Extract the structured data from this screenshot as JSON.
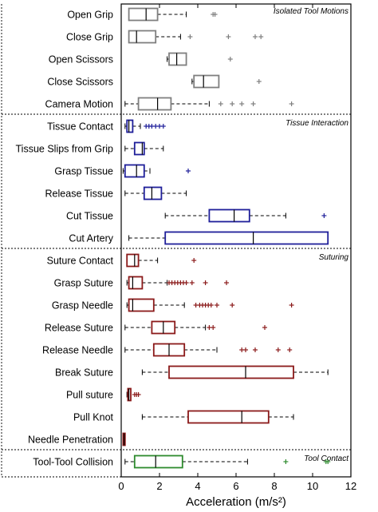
{
  "chart_data": {
    "type": "box",
    "xlabel": "Acceleration (m/s²)",
    "xlim": [
      0,
      12
    ],
    "x_ticks": [
      0,
      2,
      4,
      6,
      8,
      10,
      12
    ],
    "groups": [
      {
        "label": "Isolated Tool Motions",
        "color": "#7f7f7f",
        "items": [
          {
            "label": "Open Grip",
            "whisker_low": 0.4,
            "q1": 0.4,
            "median": 1.3,
            "q3": 1.9,
            "whisker_high": 3.4,
            "outliers": [
              4.8,
              4.9
            ]
          },
          {
            "label": "Close Grip",
            "whisker_low": 0.4,
            "q1": 0.4,
            "median": 0.8,
            "q3": 1.8,
            "whisker_high": 3.1,
            "outliers": [
              3.6,
              5.6,
              7.0,
              7.3
            ]
          },
          {
            "label": "Open Scissors",
            "whisker_low": 2.4,
            "q1": 2.5,
            "median": 2.9,
            "q3": 3.4,
            "whisker_high": 3.4,
            "outliers": [
              5.7
            ]
          },
          {
            "label": "Close Scissors",
            "whisker_low": 3.7,
            "q1": 3.8,
            "median": 4.3,
            "q3": 5.1,
            "whisker_high": 5.1,
            "outliers": [
              7.2
            ]
          },
          {
            "label": "Camera Motion",
            "whisker_low": 0.2,
            "q1": 0.9,
            "median": 1.9,
            "q3": 2.6,
            "whisker_high": 4.6,
            "outliers": [
              5.2,
              5.8,
              6.3,
              6.9,
              8.9
            ]
          }
        ]
      },
      {
        "label": "Tissue Interaction",
        "color": "#1f1f9a",
        "items": [
          {
            "label": "Tissue Contact",
            "whisker_low": 0.2,
            "q1": 0.3,
            "median": 0.4,
            "q3": 0.6,
            "whisker_high": 1.0,
            "outliers": [
              1.3,
              1.45,
              1.6,
              1.8,
              2.0,
              2.2
            ]
          },
          {
            "label": "Tissue Slips from Grip",
            "whisker_low": 0.2,
            "q1": 0.7,
            "median": 1.1,
            "q3": 1.2,
            "whisker_high": 2.2,
            "outliers": []
          },
          {
            "label": "Grasp Tissue",
            "whisker_low": 0.1,
            "q1": 0.2,
            "median": 0.8,
            "q3": 1.2,
            "whisker_high": 1.5,
            "outliers": [
              3.5
            ]
          },
          {
            "label": "Release Tissue",
            "whisker_low": 0.2,
            "q1": 1.2,
            "median": 1.6,
            "q3": 2.1,
            "whisker_high": 3.4,
            "outliers": []
          },
          {
            "label": "Cut Tissue",
            "whisker_low": 2.3,
            "q1": 4.6,
            "median": 5.9,
            "q3": 6.7,
            "whisker_high": 8.6,
            "outliers": [
              10.6
            ]
          },
          {
            "label": "Cut Artery",
            "whisker_low": 0.4,
            "q1": 2.3,
            "median": 6.9,
            "q3": 10.8,
            "whisker_high": 10.8,
            "outliers": []
          }
        ]
      },
      {
        "label": "Suturing",
        "color": "#8b1a1a",
        "items": [
          {
            "label": "Suture Contact",
            "whisker_low": 0.3,
            "q1": 0.3,
            "median": 0.7,
            "q3": 0.9,
            "whisker_high": 1.9,
            "outliers": [
              3.8
            ]
          },
          {
            "label": "Grasp Suture",
            "whisker_low": 0.3,
            "q1": 0.4,
            "median": 0.6,
            "q3": 1.1,
            "whisker_high": 2.4,
            "outliers": [
              2.5,
              2.65,
              2.8,
              2.95,
              3.1,
              3.25,
              3.4,
              3.7,
              4.4,
              5.5
            ]
          },
          {
            "label": "Grasp Needle",
            "whisker_low": 0.3,
            "q1": 0.4,
            "median": 0.6,
            "q3": 1.7,
            "whisker_high": 3.3,
            "outliers": [
              3.9,
              4.1,
              4.25,
              4.4,
              4.55,
              4.7,
              5.0,
              5.8,
              8.9
            ]
          },
          {
            "label": "Release Suture",
            "whisker_low": 0.2,
            "q1": 1.6,
            "median": 2.2,
            "q3": 2.8,
            "whisker_high": 4.4,
            "outliers": [
              4.6,
              4.8,
              7.5
            ]
          },
          {
            "label": "Release Needle",
            "whisker_low": 0.2,
            "q1": 1.7,
            "median": 2.5,
            "q3": 3.3,
            "whisker_high": 5.0,
            "outliers": [
              6.3,
              6.5,
              7.0,
              8.2,
              8.8
            ]
          },
          {
            "label": "Break Suture",
            "whisker_low": 1.1,
            "q1": 2.5,
            "median": 6.5,
            "q3": 9.0,
            "whisker_high": 10.8,
            "outliers": []
          },
          {
            "label": "Pull suture",
            "whisker_low": 0.3,
            "q1": 0.35,
            "median": 0.4,
            "q3": 0.5,
            "whisker_high": 0.5,
            "outliers": [
              0.7,
              0.8,
              0.9
            ]
          },
          {
            "label": "Pull Knot",
            "whisker_low": 1.1,
            "q1": 3.5,
            "median": 6.3,
            "q3": 7.7,
            "whisker_high": 9.0,
            "outliers": []
          },
          {
            "label": "Needle Penetration",
            "whisker_low": 0.1,
            "q1": 0.1,
            "median": 0.15,
            "q3": 0.2,
            "whisker_high": 0.2,
            "outliers": []
          }
        ]
      },
      {
        "label": "Tool Contact",
        "color": "#2e8b2e",
        "items": [
          {
            "label": "Tool-Tool Collision",
            "whisker_low": 0.2,
            "q1": 0.7,
            "median": 1.8,
            "q3": 3.2,
            "whisker_high": 6.6,
            "outliers": [
              8.6,
              10.7,
              10.8
            ]
          }
        ]
      }
    ]
  }
}
